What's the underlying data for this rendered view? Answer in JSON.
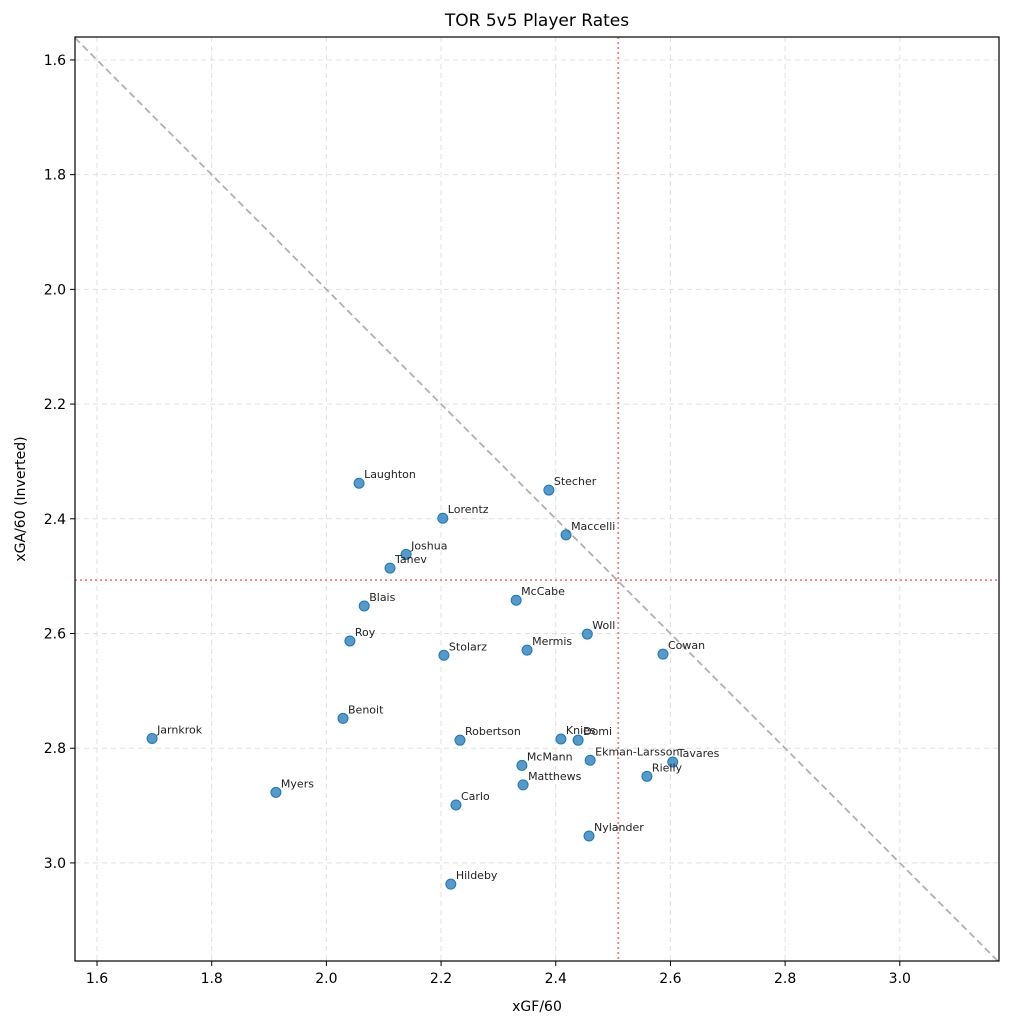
{
  "chart_data": {
    "type": "scatter",
    "title": "TOR 5v5 Player Rates",
    "xlabel": "xGF/60",
    "ylabel": "xGA/60 (Inverted)",
    "xlim": [
      1.5616,
      3.173
    ],
    "ylim": [
      3.171,
      1.56
    ],
    "y_inverted": true,
    "x_ticks": [
      1.6,
      1.8,
      2.0,
      2.2,
      2.4,
      2.6,
      2.8,
      3.0
    ],
    "x_tick_labels": [
      "1.6",
      "1.8",
      "2.0",
      "2.2",
      "2.4",
      "2.6",
      "2.8",
      "3.0"
    ],
    "y_ticks": [
      1.6,
      1.8,
      2.0,
      2.2,
      2.4,
      2.6,
      2.8,
      3.0
    ],
    "y_tick_labels": [
      "1.6",
      "1.8",
      "2.0",
      "2.2",
      "2.4",
      "2.6",
      "2.8",
      "3.0"
    ],
    "grid": true,
    "reference_lines": {
      "x_mean": 2.509,
      "y_mean": 2.507,
      "diagonal": "y = x (dashed gray)"
    },
    "colors": {
      "point": "#1f77b4",
      "mean_line": "#f08080",
      "diagonal": "#b0b0b0",
      "grid": "#e0e0e0"
    },
    "points": [
      {
        "name": "Laughton",
        "x": 2.057,
        "y": 2.338
      },
      {
        "name": "Stecher",
        "x": 2.388,
        "y": 2.35
      },
      {
        "name": "Lorentz",
        "x": 2.203,
        "y": 2.399
      },
      {
        "name": "Maccelli",
        "x": 2.418,
        "y": 2.428
      },
      {
        "name": "Joshua",
        "x": 2.139,
        "y": 2.462
      },
      {
        "name": "Tanev",
        "x": 2.111,
        "y": 2.486
      },
      {
        "name": "Blais",
        "x": 2.066,
        "y": 2.552
      },
      {
        "name": "McCabe",
        "x": 2.331,
        "y": 2.542
      },
      {
        "name": "Roy",
        "x": 2.041,
        "y": 2.613
      },
      {
        "name": "Woll",
        "x": 2.455,
        "y": 2.601
      },
      {
        "name": "Stolarz",
        "x": 2.205,
        "y": 2.638
      },
      {
        "name": "Mermis",
        "x": 2.35,
        "y": 2.629
      },
      {
        "name": "Cowan",
        "x": 2.587,
        "y": 2.636
      },
      {
        "name": "Jarnkrok",
        "x": 1.696,
        "y": 2.783
      },
      {
        "name": "Benoit",
        "x": 2.029,
        "y": 2.748
      },
      {
        "name": "Myers",
        "x": 1.912,
        "y": 2.877
      },
      {
        "name": "Robertson",
        "x": 2.233,
        "y": 2.786
      },
      {
        "name": "Knies",
        "x": 2.409,
        "y": 2.784
      },
      {
        "name": "Domi",
        "x": 2.439,
        "y": 2.786
      },
      {
        "name": "McMann",
        "x": 2.341,
        "y": 2.83
      },
      {
        "name": "Ekman-Larsson",
        "x": 2.46,
        "y": 2.821
      },
      {
        "name": "Matthews",
        "x": 2.343,
        "y": 2.864
      },
      {
        "name": "Tavares",
        "x": 2.604,
        "y": 2.824
      },
      {
        "name": "Rielly",
        "x": 2.559,
        "y": 2.849
      },
      {
        "name": "Carlo",
        "x": 2.226,
        "y": 2.899
      },
      {
        "name": "Nylander",
        "x": 2.458,
        "y": 2.953
      },
      {
        "name": "Hildeby",
        "x": 2.217,
        "y": 3.037
      }
    ]
  }
}
